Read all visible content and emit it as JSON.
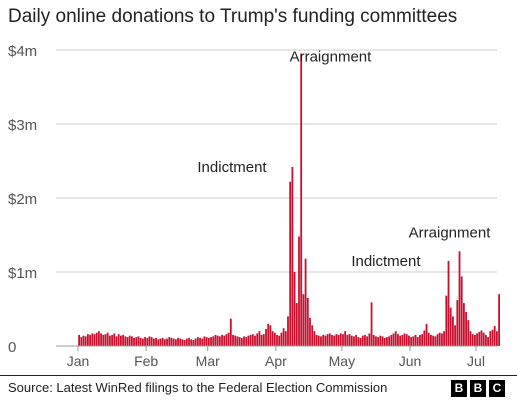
{
  "title": "Daily online donations to Trump's funding committees",
  "source": "Source: Latest WinRed filings to the Federal Election Commission",
  "logo": [
    "B",
    "B",
    "C"
  ],
  "colors": {
    "bar": "#c8102e",
    "grid": "#cccccc",
    "axis": "#999999",
    "text": "#555555"
  },
  "chart_data": {
    "type": "bar",
    "title": "Daily online donations to Trump's funding committees",
    "xlabel": "",
    "ylabel": "",
    "x_range": [
      "2023-01-01",
      "2023-07-01"
    ],
    "ylim": [
      0,
      4000000
    ],
    "y_ticks": [
      {
        "value": 0,
        "label": "0"
      },
      {
        "value": 1000000,
        "label": "$1m"
      },
      {
        "value": 2000000,
        "label": "$2m"
      },
      {
        "value": 3000000,
        "label": "$3m"
      },
      {
        "value": 4000000,
        "label": "$4m"
      }
    ],
    "x_ticks": [
      {
        "date": "2023-01-01",
        "label": "Jan"
      },
      {
        "date": "2023-02-01",
        "label": "Feb"
      },
      {
        "date": "2023-03-01",
        "label": "Mar"
      },
      {
        "date": "2023-04-01",
        "label": "Apr"
      },
      {
        "date": "2023-05-01",
        "label": "May"
      },
      {
        "date": "2023-06-01",
        "label": "Jun"
      },
      {
        "date": "2023-07-01",
        "label": "Jul"
      }
    ],
    "grid": true,
    "series": [
      {
        "values": [
          150000,
          120000,
          140000,
          130000,
          160000,
          150000,
          170000,
          160000,
          180000,
          200000,
          170000,
          150000,
          160000,
          180000,
          140000,
          150000,
          170000,
          130000,
          160000,
          140000,
          150000,
          130000,
          120000,
          140000,
          130000,
          110000,
          120000,
          130000,
          110000,
          100000,
          120000,
          110000,
          130000,
          120000,
          100000,
          110000,
          90000,
          100000,
          110000,
          90000,
          100000,
          120000,
          110000,
          100000,
          90000,
          110000,
          100000,
          90000,
          80000,
          100000,
          110000,
          90000,
          80000,
          100000,
          120000,
          110000,
          100000,
          130000,
          120000,
          110000,
          120000,
          130000,
          150000,
          140000,
          130000,
          150000,
          140000,
          160000,
          180000,
          370000,
          150000,
          140000,
          130000,
          120000,
          110000,
          130000,
          120000,
          140000,
          150000,
          160000,
          140000,
          170000,
          200000,
          150000,
          160000,
          230000,
          300000,
          280000,
          200000,
          180000,
          150000,
          140000,
          180000,
          240000,
          200000,
          400000,
          2220000,
          2420000,
          1000000,
          580000,
          1480000,
          3950000,
          700000,
          1180000,
          650000,
          380000,
          280000,
          200000,
          150000,
          140000,
          130000,
          150000,
          140000,
          160000,
          170000,
          150000,
          140000,
          160000,
          150000,
          170000,
          160000,
          200000,
          150000,
          160000,
          140000,
          130000,
          150000,
          120000,
          110000,
          140000,
          150000,
          130000,
          170000,
          590000,
          150000,
          130000,
          120000,
          140000,
          130000,
          110000,
          120000,
          130000,
          150000,
          170000,
          200000,
          160000,
          140000,
          150000,
          170000,
          160000,
          140000,
          120000,
          130000,
          150000,
          120000,
          150000,
          160000,
          210000,
          300000,
          180000,
          150000,
          140000,
          130000,
          160000,
          180000,
          170000,
          200000,
          680000,
          1150000,
          520000,
          400000,
          280000,
          620000,
          1280000,
          940000,
          580000,
          460000,
          350000,
          200000,
          160000,
          150000,
          170000,
          190000,
          210000,
          180000,
          150000,
          120000,
          200000,
          220000,
          270000,
          200000,
          700000
        ]
      }
    ],
    "annotations": [
      {
        "text": "Indictment",
        "date": "2023-03-30",
        "value": 2420000,
        "side": "left"
      },
      {
        "text": "Arraignment",
        "date": "2023-04-04",
        "value": 3950000,
        "side": "right"
      },
      {
        "text": "Indictment",
        "date": "2023-06-08",
        "value": 1150000,
        "side": "left"
      },
      {
        "text": "Arraignment",
        "date": "2023-06-13",
        "value": 1280000,
        "side": "above"
      }
    ]
  }
}
